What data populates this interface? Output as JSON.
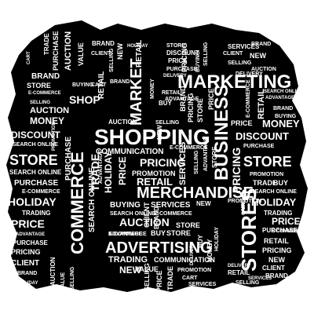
{
  "colors": {
    "background": "#000000",
    "text": "#ffffff",
    "page": "#ffffff"
  },
  "words": {
    "marketing": "MARKETING",
    "shopping": "SHOPPING",
    "merchandise": "MERCHANDISE",
    "advertising": "ADVERTISING",
    "commerce": "COMMERCE",
    "stores": "STORES",
    "business": "BUSINESS",
    "market": "MARKET",
    "shop": "SHOP",
    "discount_left": "DISCOUNT",
    "discount_right": "DISCOUNT",
    "money_left": "MONEY",
    "money_right": "MONEY",
    "store_left": "STORE",
    "store_right": "STORE",
    "auction_left": "AUCTION",
    "auction_mid": "AUCTION",
    "auction_bottom": "AUCTION",
    "holiday_left": "HOLIDAY",
    "holiday_right": "HOLIDAY",
    "holiday_v": "HOLIDAY",
    "holiday_small": "HOLIDAY",
    "price_left": "PRICE",
    "price_right": "PRICE",
    "price_top": "PRICE",
    "price_mid": "PRICE",
    "pricing_top": "PRICING",
    "pricing_mid": "PRICING",
    "pricing_right": "PRICING",
    "pricing_left": "PRICING",
    "trading_left": "TRADING",
    "trading_mid": "TRADING",
    "trading_right": "TRADING",
    "buying_top": "BUYING",
    "buying_mid": "BUYING",
    "buying_right": "BUYING",
    "services_top": "SERVICES",
    "services_mid": "SERVICES",
    "services_bottom": "SERVICES",
    "promotion_left": "PROMOTION",
    "promotion_mid": "PROMOTION",
    "promotion_right": "PROMOTION",
    "communication_mid": "COMMUNICATION",
    "communication_bottom": "COMMUNICATION",
    "search_online_left": "SEARCH ONLINE",
    "search_online_mid": "SEARCH ONLINE",
    "search_online_right": "SEARCH ONLINE",
    "purchase_left": "PURCHASE",
    "purchase_right": "PURCHASE",
    "purchase_top": "PURCHASE",
    "purchase_bottom": "PURCHASE",
    "ecommerce_left": "E-COMMERCE",
    "ecommerce_mid": "E-COMMERCE",
    "ecommerce_bottom": "E-COMMERCE",
    "ecommerce_right": "E-COMMERCE",
    "client_left": "CLIENT",
    "client_right": "CLIENT",
    "client_top": "CLIENT",
    "retail_top": "RETAIL",
    "retail_mid": "RETAIL",
    "retail_right": "RETAIL",
    "retail_bottom": "RETAIL",
    "brand_top_left": "BRAND",
    "brand_top": "BRAND",
    "brand_right": "BRAND",
    "brand_bottom": "BRAND",
    "brand_small": "BRAND",
    "cart_top": "CART",
    "cart_left": "CART",
    "cart_right": "CART",
    "cart_bottom": "CART",
    "buy_mid": "BUY",
    "buy_right": "BUY",
    "buy_top": "BUY",
    "new_top": "NEW",
    "new_mid": "NEW",
    "new_bottom": "NEW",
    "value_top": "VALUE",
    "value_mid": "VALUE",
    "value_bottom": "VALUE",
    "selling_top": "SELLING",
    "selling_left": "SELLING",
    "selling_mid": "SELLING",
    "selling_bottom": "SELLING",
    "advantage_top": "ADVANTAGE",
    "advantage_mid": "ADVANTAGE",
    "advantage_left": "ADVANTAGE",
    "delivery_top": "DELIVERY",
    "delivery_mid": "DELIVERY",
    "delivery_bottom": "DELIVERY",
    "trade_top": "TRADE",
    "trade_mid": "TRADE",
    "trade_right": "TRADE"
  }
}
